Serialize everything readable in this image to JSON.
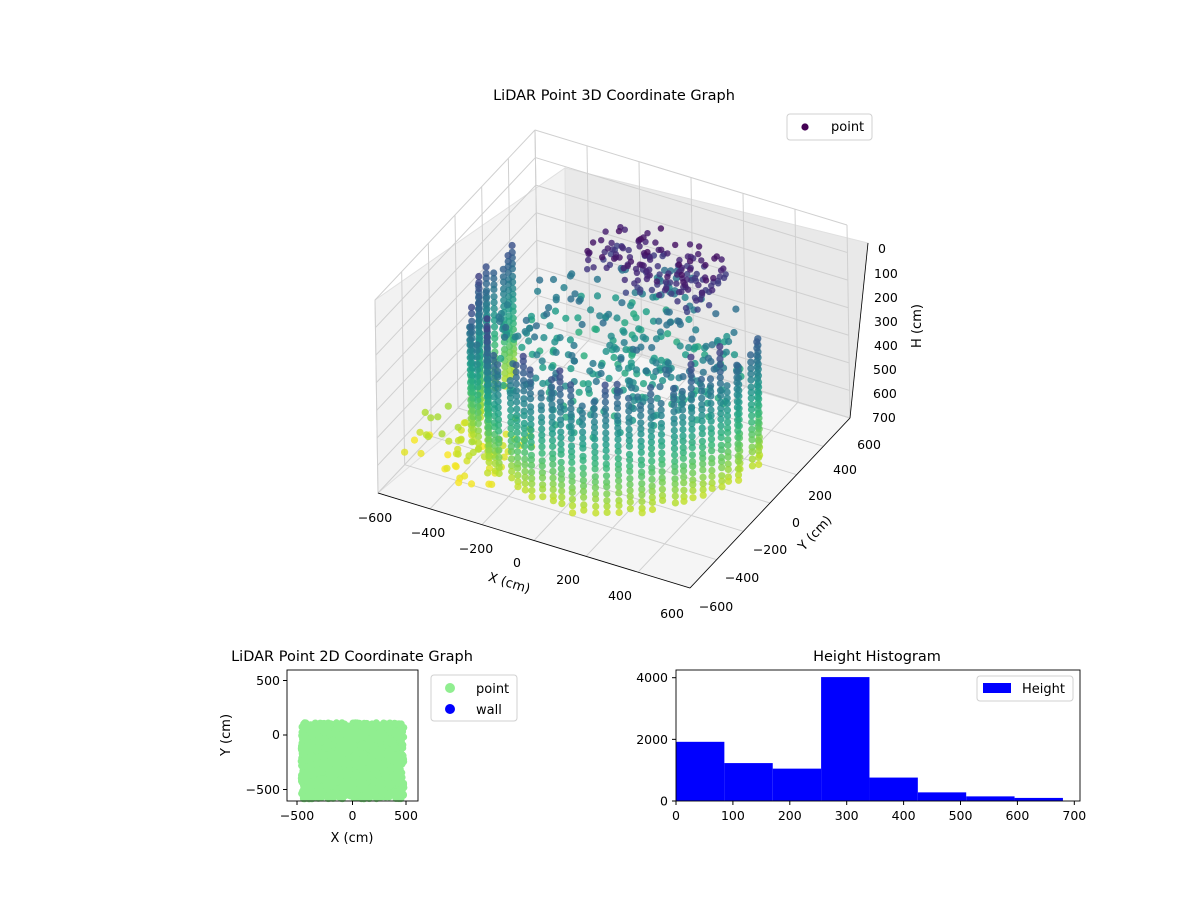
{
  "chart_data": [
    {
      "type": "scatter3d",
      "title": "LiDAR Point 3D Coordinate Graph",
      "xlabel": "X (cm)",
      "ylabel": "Y (cm)",
      "zlabel": "H (cm)",
      "xticks": [
        "−600",
        "−400",
        "−200",
        "0",
        "200",
        "400",
        "600"
      ],
      "yticks": [
        "−600",
        "−400",
        "−200",
        "0",
        "200",
        "400",
        "600"
      ],
      "zticks": [
        "0",
        "100",
        "200",
        "300",
        "400",
        "500",
        "600",
        "700"
      ],
      "xlim": [
        -600,
        600
      ],
      "ylim": [
        -600,
        600
      ],
      "zlim": [
        700,
        0
      ],
      "colormap": "viridis",
      "legend": {
        "label": "point",
        "placement": "top-right",
        "color": "#440154"
      },
      "grid": true
    },
    {
      "type": "scatter",
      "title": "LiDAR Point 2D Coordinate Graph",
      "xlabel": "X (cm)",
      "ylabel": "Y (cm)",
      "xticks": [
        "−500",
        "0",
        "500"
      ],
      "yticks": [
        "−500",
        "0",
        "500"
      ],
      "xlim": [
        -600,
        600
      ],
      "ylim": [
        -620,
        620
      ],
      "series": [
        {
          "name": "point",
          "color": "#90ee90"
        },
        {
          "name": "wall",
          "color": "#0000ff"
        }
      ],
      "legend": {
        "placement": "outside-right"
      }
    },
    {
      "type": "bar",
      "title": "Height Histogram",
      "xticks": [
        "0",
        "100",
        "200",
        "300",
        "400",
        "500",
        "600",
        "700"
      ],
      "yticks": [
        "0",
        "2000",
        "4000"
      ],
      "xlim": [
        0,
        710
      ],
      "ylim": [
        0,
        4250
      ],
      "bins": [
        0,
        85,
        170,
        255,
        340,
        425,
        510,
        595,
        680
      ],
      "counts": [
        1920,
        1230,
        1050,
        4020,
        760,
        280,
        150,
        100
      ],
      "series": [
        {
          "name": "Height",
          "color": "#0000ff"
        }
      ],
      "legend": {
        "placement": "top-right"
      }
    }
  ]
}
